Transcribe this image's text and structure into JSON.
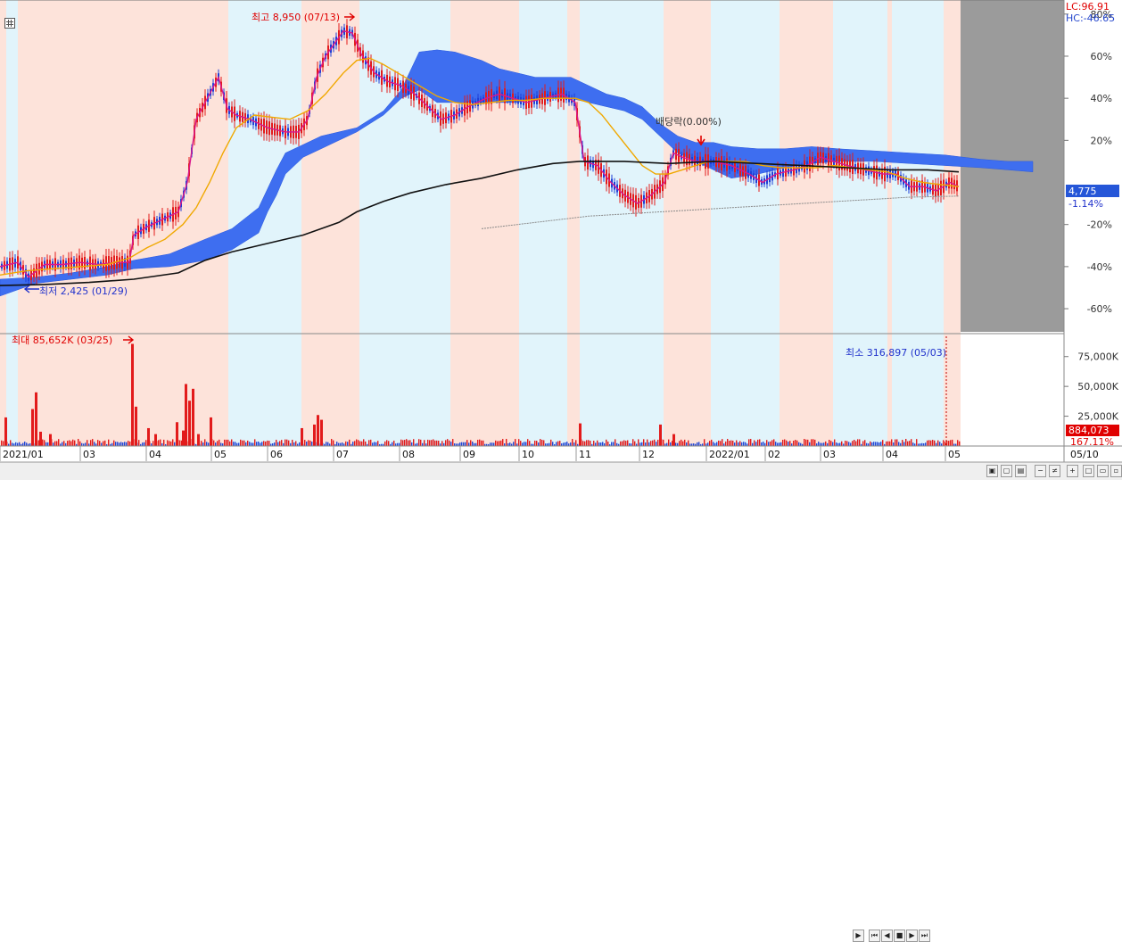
{
  "chart_data": [
    {
      "type": "line",
      "pane": "price",
      "ylabel_ticks": [
        "80%",
        "60%",
        "40%",
        "20%",
        "-20%",
        "-40%",
        "-60%"
      ],
      "ytick_values": [
        80,
        60,
        40,
        20,
        -20,
        -40,
        -60
      ],
      "ylim": [
        -71,
        85
      ],
      "xlim": [
        0,
        1077
      ],
      "x_tick_labels": [
        "2021/01",
        "03",
        "04",
        "05",
        "06",
        "07",
        "08",
        "09",
        "10",
        "11",
        "12",
        "2022/01",
        "02",
        "03",
        "04",
        "05"
      ],
      "x_axis_right_label": "05/10",
      "indicators": {
        "lc": "LC:96.91",
        "hc": "HC:-46.65"
      },
      "current_price": "4,775",
      "current_change": "-1.14%",
      "annotations": {
        "high": "최고 8,950 (07/13)",
        "low": "최저 2,425 (01/29)",
        "dividend": "배당락(0.00%)"
      },
      "series": [
        {
          "points": [
            [
              0,
              -40
            ],
            [
              20,
              -38
            ],
            [
              32,
              -45
            ],
            [
              50,
              -39
            ],
            [
              70,
              -39
            ],
            [
              90,
              -38
            ],
            [
              110,
              -39
            ],
            [
              130,
              -38
            ],
            [
              145,
              -38
            ],
            [
              150,
              -25
            ],
            [
              165,
              -21
            ],
            [
              180,
              -18
            ],
            [
              200,
              -14
            ],
            [
              210,
              0
            ],
            [
              220,
              30
            ],
            [
              235,
              42
            ],
            [
              245,
              50
            ],
            [
              255,
              35
            ],
            [
              265,
              32
            ],
            [
              280,
              30
            ],
            [
              300,
              26
            ],
            [
              320,
              24
            ],
            [
              335,
              24
            ],
            [
              345,
              30
            ],
            [
              355,
              50
            ],
            [
              365,
              60
            ],
            [
              375,
              66
            ],
            [
              385,
              72
            ],
            [
              395,
              71
            ],
            [
              405,
              61
            ],
            [
              420,
              52
            ],
            [
              435,
              48
            ],
            [
              450,
              46
            ],
            [
              465,
              42
            ],
            [
              480,
              36
            ],
            [
              495,
              30
            ],
            [
              510,
              32
            ],
            [
              525,
              36
            ],
            [
              545,
              40
            ],
            [
              560,
              42
            ],
            [
              575,
              40
            ],
            [
              590,
              38
            ],
            [
              610,
              40
            ],
            [
              630,
              42
            ],
            [
              645,
              38
            ],
            [
              655,
              10
            ],
            [
              670,
              8
            ],
            [
              685,
              0
            ],
            [
              700,
              -6
            ],
            [
              715,
              -10
            ],
            [
              730,
              -6
            ],
            [
              745,
              0
            ],
            [
              755,
              14
            ],
            [
              765,
              12
            ],
            [
              780,
              10
            ],
            [
              800,
              10
            ],
            [
              820,
              8
            ],
            [
              840,
              4
            ],
            [
              855,
              0
            ],
            [
              870,
              4
            ],
            [
              890,
              6
            ],
            [
              905,
              8
            ],
            [
              920,
              12
            ],
            [
              935,
              10
            ],
            [
              950,
              8
            ],
            [
              970,
              6
            ],
            [
              990,
              4
            ],
            [
              1005,
              4
            ],
            [
              1020,
              -2
            ],
            [
              1035,
              -2
            ],
            [
              1050,
              -4
            ],
            [
              1065,
              0
            ],
            [
              1075,
              -2
            ]
          ]
        },
        {
          "points": [
            [
              0,
              -44
            ],
            [
              30,
              -42
            ],
            [
              60,
              -41
            ],
            [
              90,
              -40
            ],
            [
              120,
              -39
            ],
            [
              145,
              -36
            ],
            [
              165,
              -31
            ],
            [
              185,
              -27
            ],
            [
              205,
              -20
            ],
            [
              220,
              -12
            ],
            [
              235,
              0
            ],
            [
              250,
              14
            ],
            [
              265,
              26
            ],
            [
              285,
              32
            ],
            [
              305,
              31
            ],
            [
              325,
              30
            ],
            [
              345,
              34
            ],
            [
              365,
              42
            ],
            [
              385,
              52
            ],
            [
              400,
              58
            ],
            [
              415,
              59
            ],
            [
              430,
              56
            ],
            [
              450,
              51
            ],
            [
              470,
              46
            ],
            [
              490,
              41
            ],
            [
              510,
              38
            ],
            [
              530,
              37
            ],
            [
              550,
              38
            ],
            [
              570,
              39
            ],
            [
              590,
              39
            ],
            [
              610,
              40
            ],
            [
              630,
              40
            ],
            [
              645,
              40
            ],
            [
              660,
              38
            ],
            [
              675,
              32
            ],
            [
              690,
              24
            ],
            [
              705,
              16
            ],
            [
              720,
              8
            ],
            [
              735,
              4
            ],
            [
              750,
              4
            ],
            [
              765,
              6
            ],
            [
              780,
              8
            ],
            [
              795,
              10
            ],
            [
              815,
              10
            ],
            [
              835,
              10
            ],
            [
              855,
              8
            ],
            [
              875,
              7
            ],
            [
              895,
              7
            ],
            [
              915,
              7
            ],
            [
              935,
              8
            ],
            [
              955,
              7
            ],
            [
              975,
              6
            ],
            [
              995,
              5
            ],
            [
              1015,
              2
            ],
            [
              1035,
              0
            ],
            [
              1055,
              -1
            ],
            [
              1075,
              -2
            ]
          ]
        },
        {
          "points": [
            [
              0,
              -49
            ],
            [
              50,
              -48.5
            ],
            [
              100,
              -47.5
            ],
            [
              150,
              -46
            ],
            [
              200,
              -43
            ],
            [
              230,
              -37
            ],
            [
              260,
              -33
            ],
            [
              300,
              -29
            ],
            [
              340,
              -25
            ],
            [
              380,
              -19
            ],
            [
              400,
              -14
            ],
            [
              430,
              -9
            ],
            [
              460,
              -5
            ],
            [
              500,
              -1
            ],
            [
              540,
              2
            ],
            [
              580,
              6
            ],
            [
              620,
              9
            ],
            [
              650,
              10
            ],
            [
              700,
              10
            ],
            [
              750,
              9
            ],
            [
              800,
              10
            ],
            [
              850,
              9
            ],
            [
              900,
              8
            ],
            [
              950,
              7
            ],
            [
              1000,
              6
            ],
            [
              1040,
              6
            ],
            [
              1075,
              5
            ]
          ]
        },
        {
          "points": [
            [
              540,
              -22
            ],
            [
              580,
              -20
            ],
            [
              620,
              -18
            ],
            [
              660,
              -16
            ],
            [
              700,
              -15
            ],
            [
              740,
              -14
            ],
            [
              780,
              -13
            ],
            [
              820,
              -12
            ],
            [
              860,
              -11
            ],
            [
              900,
              -10
            ],
            [
              940,
              -9
            ],
            [
              980,
              -8
            ],
            [
              1020,
              -7
            ],
            [
              1075,
              -6.5
            ]
          ]
        }
      ]
    },
    {
      "type": "bar",
      "pane": "volume",
      "ylabel_ticks": [
        "75,000K",
        "50,000K",
        "25,000K"
      ],
      "ytick_values": [
        75000,
        50000,
        25000
      ],
      "ylim": [
        0,
        92000
      ],
      "current_volume": "884,073",
      "current_volume_change": "167.11%",
      "annotations": {
        "max": "최대 85,652K (03/25)",
        "min": "최소 316,897 (05/03)"
      },
      "bars": [
        [
          6,
          24000
        ],
        [
          36,
          31000
        ],
        [
          40,
          45000
        ],
        [
          45,
          12000
        ],
        [
          56,
          10000
        ],
        [
          148,
          85652
        ],
        [
          152,
          33000
        ],
        [
          166,
          15000
        ],
        [
          174,
          10000
        ],
        [
          198,
          20000
        ],
        [
          205,
          13000
        ],
        [
          208,
          52000
        ],
        [
          212,
          38000
        ],
        [
          216,
          48000
        ],
        [
          222,
          10000
        ],
        [
          236,
          24000
        ],
        [
          338,
          15000
        ],
        [
          352,
          18000
        ],
        [
          356,
          26000
        ],
        [
          360,
          22000
        ],
        [
          650,
          19000
        ],
        [
          740,
          18000
        ],
        [
          755,
          10000
        ]
      ]
    }
  ]
}
